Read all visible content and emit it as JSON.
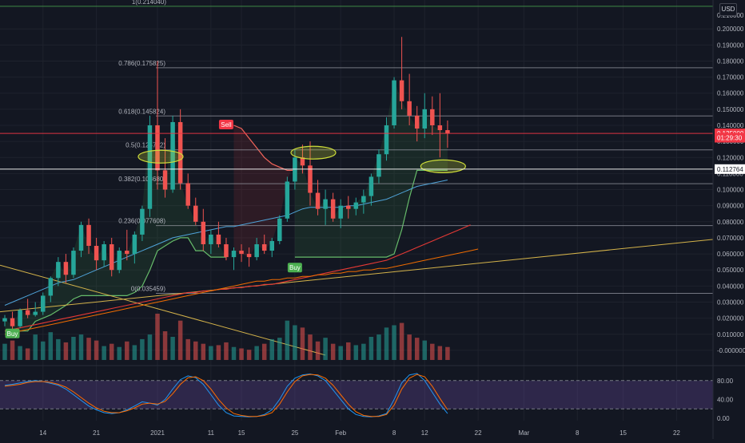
{
  "chart_data": {
    "type": "candlestick",
    "currency_label": "USD",
    "price_axis": {
      "min": -0.008,
      "max": 0.214,
      "ticks": [
        0.2,
        0.19,
        0.18,
        0.17,
        0.16,
        0.15,
        0.14,
        0.13,
        0.12,
        0.11,
        0.1,
        0.09,
        0.08,
        0.07,
        0.06,
        0.05,
        0.04,
        0.03,
        0.02,
        0.01,
        0.0
      ],
      "tick_labels": [
        "0.200000",
        "0.190000",
        "0.180000",
        "0.170000",
        "0.160000",
        "0.150000",
        "0.140000",
        "0.130000",
        "0.120000",
        "0.110000",
        "0.100000",
        "0.090000",
        "0.080000",
        "0.070000",
        "0.060000",
        "0.050000",
        "0.040000",
        "0.030000",
        "0.020000",
        "0.010000",
        "-0.000000"
      ],
      "top_clipped_label": "0.210000"
    },
    "time_axis": {
      "labels": [
        "14",
        "21",
        "2021",
        "11",
        "15",
        "25",
        "Feb",
        "8",
        "12",
        "22",
        "Mar",
        "8",
        "15",
        "22"
      ],
      "label_bars": [
        5,
        12,
        20,
        27,
        31,
        38,
        44,
        51,
        55,
        62,
        68,
        75,
        81,
        88
      ]
    },
    "price_labels": [
      {
        "text": "0.135000",
        "value": 0.135,
        "color": "#f23645"
      },
      {
        "text": "01:29:30",
        "value": 0.1323,
        "color": "#f23645"
      },
      {
        "text": "0.112764",
        "value": 0.112764,
        "color": "#ffffff"
      }
    ],
    "fib_levels": [
      {
        "ratio": "1",
        "value": 0.21404,
        "label": "1(0.214040)"
      },
      {
        "ratio": "0.786",
        "value": 0.175825,
        "label": "0.786(0.175825)"
      },
      {
        "ratio": "0.618",
        "value": 0.145824,
        "label": "0.618(0.145824)"
      },
      {
        "ratio": "0.5",
        "value": 0.124752,
        "label": "0.5(0.124752)"
      },
      {
        "ratio": "0.382",
        "value": 0.10368,
        "label": "0.382(0.103680)"
      },
      {
        "ratio": "0.236",
        "value": 0.077608,
        "label": "0.236(0.077608)"
      },
      {
        "ratio": "0",
        "value": 0.035459,
        "label": "0(0.035459)"
      }
    ],
    "signals": [
      {
        "label": "Sell",
        "bar": 29,
        "price": 0.14,
        "kind": "sell"
      },
      {
        "label": "Buy",
        "bar": 38,
        "price": 0.051,
        "kind": "buy"
      },
      {
        "label": "Buy",
        "bar": 1,
        "price": 0.01,
        "kind": "buy"
      }
    ],
    "candles": [
      [
        0.018,
        0.022,
        0.015,
        0.02
      ],
      [
        0.02,
        0.024,
        0.013,
        0.015
      ],
      [
        0.015,
        0.026,
        0.014,
        0.025
      ],
      [
        0.025,
        0.032,
        0.02,
        0.022
      ],
      [
        0.022,
        0.03,
        0.021,
        0.024
      ],
      [
        0.024,
        0.036,
        0.022,
        0.034
      ],
      [
        0.034,
        0.046,
        0.03,
        0.045
      ],
      [
        0.045,
        0.058,
        0.04,
        0.055
      ],
      [
        0.055,
        0.06,
        0.042,
        0.047
      ],
      [
        0.047,
        0.064,
        0.045,
        0.062
      ],
      [
        0.062,
        0.08,
        0.058,
        0.078
      ],
      [
        0.078,
        0.082,
        0.06,
        0.065
      ],
      [
        0.065,
        0.07,
        0.05,
        0.056
      ],
      [
        0.056,
        0.068,
        0.052,
        0.066
      ],
      [
        0.066,
        0.07,
        0.046,
        0.05
      ],
      [
        0.05,
        0.064,
        0.048,
        0.062
      ],
      [
        0.062,
        0.075,
        0.056,
        0.06
      ],
      [
        0.06,
        0.074,
        0.054,
        0.072
      ],
      [
        0.072,
        0.09,
        0.068,
        0.088
      ],
      [
        0.088,
        0.146,
        0.083,
        0.14
      ],
      [
        0.14,
        0.18,
        0.1,
        0.112
      ],
      [
        0.112,
        0.132,
        0.095,
        0.1
      ],
      [
        0.1,
        0.146,
        0.098,
        0.142
      ],
      [
        0.142,
        0.15,
        0.1,
        0.104
      ],
      [
        0.104,
        0.11,
        0.088,
        0.09
      ],
      [
        0.09,
        0.095,
        0.078,
        0.08
      ],
      [
        0.08,
        0.088,
        0.062,
        0.066
      ],
      [
        0.066,
        0.075,
        0.06,
        0.072
      ],
      [
        0.072,
        0.08,
        0.064,
        0.066
      ],
      [
        0.066,
        0.07,
        0.056,
        0.058
      ],
      [
        0.058,
        0.064,
        0.05,
        0.062
      ],
      [
        0.062,
        0.066,
        0.055,
        0.06
      ],
      [
        0.06,
        0.064,
        0.052,
        0.058
      ],
      [
        0.058,
        0.07,
        0.056,
        0.066
      ],
      [
        0.066,
        0.072,
        0.06,
        0.062
      ],
      [
        0.062,
        0.07,
        0.058,
        0.068
      ],
      [
        0.068,
        0.084,
        0.066,
        0.082
      ],
      [
        0.082,
        0.108,
        0.08,
        0.105
      ],
      [
        0.105,
        0.125,
        0.1,
        0.12
      ],
      [
        0.12,
        0.128,
        0.11,
        0.115
      ],
      [
        0.115,
        0.13,
        0.09,
        0.098
      ],
      [
        0.098,
        0.106,
        0.084,
        0.088
      ],
      [
        0.088,
        0.1,
        0.078,
        0.094
      ],
      [
        0.094,
        0.098,
        0.08,
        0.082
      ],
      [
        0.082,
        0.094,
        0.076,
        0.09
      ],
      [
        0.09,
        0.096,
        0.082,
        0.088
      ],
      [
        0.088,
        0.095,
        0.084,
        0.092
      ],
      [
        0.092,
        0.1,
        0.085,
        0.096
      ],
      [
        0.096,
        0.11,
        0.09,
        0.108
      ],
      [
        0.108,
        0.125,
        0.104,
        0.122
      ],
      [
        0.122,
        0.145,
        0.118,
        0.14
      ],
      [
        0.14,
        0.17,
        0.138,
        0.168
      ],
      [
        0.168,
        0.195,
        0.15,
        0.155
      ],
      [
        0.155,
        0.172,
        0.14,
        0.146
      ],
      [
        0.146,
        0.152,
        0.13,
        0.138
      ],
      [
        0.138,
        0.16,
        0.132,
        0.15
      ],
      [
        0.15,
        0.158,
        0.134,
        0.14
      ],
      [
        0.14,
        0.16,
        0.12,
        0.137
      ],
      [
        0.137,
        0.143,
        0.126,
        0.135
      ]
    ],
    "volumes": [
      0.35,
      0.42,
      0.3,
      0.25,
      0.55,
      0.4,
      0.6,
      0.45,
      0.38,
      0.5,
      0.55,
      0.48,
      0.42,
      0.3,
      0.35,
      0.28,
      0.4,
      0.32,
      0.45,
      0.55,
      1.0,
      0.62,
      0.5,
      0.85,
      0.45,
      0.4,
      0.35,
      0.3,
      0.32,
      0.38,
      0.28,
      0.25,
      0.22,
      0.3,
      0.35,
      0.45,
      0.48,
      0.85,
      0.75,
      0.7,
      0.55,
      0.4,
      0.48,
      0.35,
      0.3,
      0.38,
      0.32,
      0.35,
      0.5,
      0.55,
      0.7,
      0.75,
      0.8,
      0.55,
      0.48,
      0.42,
      0.35,
      0.3,
      0.28
    ],
    "stoch_rsi": {
      "axis": {
        "min": -5,
        "max": 105,
        "ticks": [
          80,
          40,
          0
        ],
        "tick_labels": [
          "80.00",
          "40.00",
          "0.00"
        ],
        "band": [
          20,
          80
        ]
      },
      "k": [
        70,
        72,
        75,
        78,
        80,
        78,
        74,
        70,
        62,
        50,
        38,
        26,
        18,
        12,
        10,
        12,
        18,
        26,
        35,
        32,
        28,
        40,
        62,
        82,
        90,
        86,
        72,
        50,
        28,
        12,
        5,
        4,
        3,
        4,
        8,
        18,
        40,
        68,
        85,
        92,
        94,
        90,
        80,
        60,
        40,
        20,
        8,
        4,
        3,
        5,
        10,
        40,
        75,
        92,
        95,
        80,
        55,
        30,
        10
      ],
      "d": [
        68,
        70,
        72,
        76,
        78,
        78,
        76,
        72,
        66,
        56,
        44,
        32,
        22,
        15,
        12,
        12,
        16,
        22,
        30,
        32,
        30,
        36,
        52,
        72,
        86,
        88,
        80,
        62,
        40,
        22,
        10,
        6,
        4,
        4,
        6,
        12,
        30,
        56,
        78,
        90,
        93,
        92,
        85,
        70,
        50,
        30,
        14,
        6,
        4,
        4,
        8,
        28,
        62,
        85,
        93,
        88,
        68,
        42,
        18
      ]
    },
    "ema_trend": [
      0.028,
      0.03,
      0.032,
      0.034,
      0.036,
      0.038,
      0.04,
      0.042,
      0.043,
      0.044,
      0.046,
      0.048,
      0.05,
      0.052,
      0.054,
      0.056,
      0.058,
      0.06,
      0.062,
      0.064,
      0.066,
      0.068,
      0.07,
      0.071,
      0.072,
      0.073,
      0.074,
      0.075,
      0.076,
      0.077,
      0.077,
      0.078,
      0.079,
      0.08,
      0.081,
      0.082,
      0.083,
      0.084,
      0.086,
      0.088,
      0.089,
      0.089,
      0.089,
      0.089,
      0.089,
      0.09,
      0.09,
      0.091,
      0.092,
      0.093,
      0.094,
      0.096,
      0.098,
      0.1,
      0.102,
      0.103,
      0.104,
      0.105,
      0.106
    ],
    "ma_long": [
      0.012,
      0.013,
      0.014,
      0.015,
      0.016,
      0.017,
      0.018,
      0.019,
      0.02,
      0.021,
      0.022,
      0.023,
      0.024,
      0.025,
      0.026,
      0.027,
      0.028,
      0.029,
      0.03,
      0.031,
      0.032,
      0.033,
      0.034,
      0.035,
      0.036,
      0.036,
      0.037,
      0.037,
      0.038,
      0.038,
      0.039,
      0.039,
      0.04,
      0.04,
      0.041,
      0.041,
      0.042,
      0.043,
      0.044,
      0.045,
      0.046,
      0.047,
      0.048,
      0.049,
      0.05,
      0.051,
      0.052,
      0.053,
      0.054,
      0.055,
      0.056,
      0.058,
      0.06,
      0.062,
      0.064,
      0.066,
      0.068,
      0.07,
      0.072,
      0.074,
      0.076,
      0.078
    ],
    "ma_slow": [
      0.01,
      0.011,
      0.012,
      0.013,
      0.014,
      0.015,
      0.016,
      0.017,
      0.018,
      0.019,
      0.02,
      0.021,
      0.022,
      0.023,
      0.024,
      0.025,
      0.026,
      0.027,
      0.028,
      0.029,
      0.03,
      0.031,
      0.032,
      0.033,
      0.034,
      0.035,
      0.036,
      0.037,
      0.038,
      0.039,
      0.04,
      0.041,
      0.042,
      0.043,
      0.043,
      0.044,
      0.044,
      0.045,
      0.045,
      0.046,
      0.046,
      0.047,
      0.047,
      0.048,
      0.048,
      0.049,
      0.049,
      0.05,
      0.05,
      0.051,
      0.051,
      0.052,
      0.053,
      0.054,
      0.055,
      0.056,
      0.057,
      0.058,
      0.059,
      0.06,
      0.061,
      0.062,
      0.063
    ],
    "trailing_stop": [
      0.012,
      0.012,
      0.012,
      0.012,
      0.018,
      0.02,
      0.022,
      0.025,
      0.028,
      0.032,
      0.034,
      0.034,
      0.034,
      0.034,
      0.034,
      0.034,
      0.034,
      0.036,
      0.04,
      0.05,
      0.062,
      0.065,
      0.068,
      0.07,
      0.07,
      0.062,
      0.062,
      0.058,
      0.058,
      0.058
    ],
    "trailing_stop_resistance": [
      0.14,
      0.138,
      0.132,
      0.126,
      0.12,
      0.116,
      0.114,
      0.112,
      0.112
    ]
  }
}
